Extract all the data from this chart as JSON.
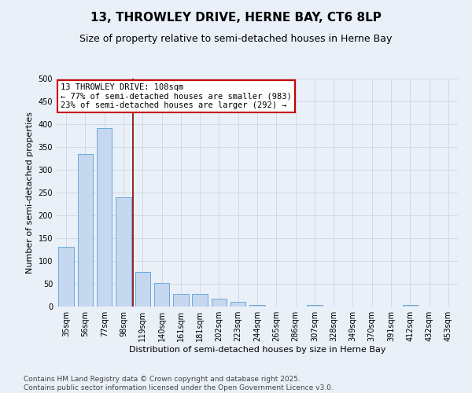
{
  "title": "13, THROWLEY DRIVE, HERNE BAY, CT6 8LP",
  "subtitle": "Size of property relative to semi-detached houses in Herne Bay",
  "xlabel": "Distribution of semi-detached houses by size in Herne Bay",
  "ylabel": "Number of semi-detached properties",
  "categories": [
    "35sqm",
    "56sqm",
    "77sqm",
    "98sqm",
    "119sqm",
    "140sqm",
    "161sqm",
    "181sqm",
    "202sqm",
    "223sqm",
    "244sqm",
    "265sqm",
    "286sqm",
    "307sqm",
    "328sqm",
    "349sqm",
    "370sqm",
    "391sqm",
    "412sqm",
    "432sqm",
    "453sqm"
  ],
  "values": [
    131,
    335,
    392,
    240,
    76,
    52,
    27,
    27,
    18,
    11,
    4,
    0,
    0,
    4,
    0,
    0,
    0,
    0,
    3,
    0,
    0
  ],
  "bar_color": "#c5d8f0",
  "bar_edge_color": "#5a9fd4",
  "property_line_color": "#8b0000",
  "annotation_text": "13 THROWLEY DRIVE: 108sqm\n← 77% of semi-detached houses are smaller (983)\n23% of semi-detached houses are larger (292) →",
  "annotation_box_color": "#ffffff",
  "annotation_box_edge_color": "#cc0000",
  "ylim": [
    0,
    500
  ],
  "yticks": [
    0,
    50,
    100,
    150,
    200,
    250,
    300,
    350,
    400,
    450,
    500
  ],
  "grid_color": "#d0d8e8",
  "background_color": "#eaf0f8",
  "footer_text": "Contains HM Land Registry data © Crown copyright and database right 2025.\nContains public sector information licensed under the Open Government Licence v3.0.",
  "title_fontsize": 11,
  "subtitle_fontsize": 9,
  "axis_label_fontsize": 8,
  "tick_fontsize": 7,
  "annotation_fontsize": 7.5,
  "footer_fontsize": 6.5
}
